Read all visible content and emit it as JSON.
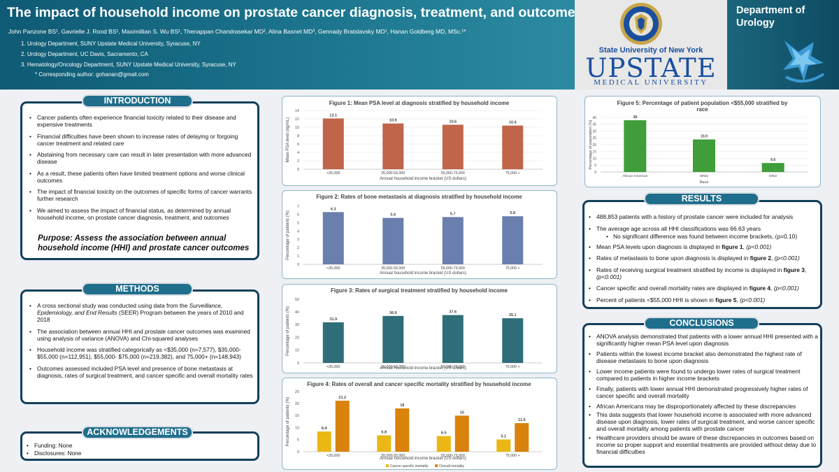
{
  "header": {
    "title": "The impact of household income on prostate cancer diagnosis, treatment, and outcomes",
    "authors": "John Panzone BS¹, Gavrielle J. Rood BS¹, Maximillian S. Wu BS¹, Thenappan Chandrasekar MD², Alina Basnet MD³, Gennady Bratslavsky MD¹, Hanan Goldberg MD, MSc.¹*",
    "affiliations": [
      "1. Urology Department, SUNY Upstate Medical University, Syracuse, NY",
      "2. Urology Department, UC Davis, Sacramento, CA",
      "3. Hematology/Oncology Department, SUNY Upstate Medical University, Syracuse, NY"
    ],
    "corresponding": "* Corresponding author: gohanan@gmail.com",
    "suny": "State University of New York",
    "upstate": "UPSTATE",
    "medical_university": "MEDICAL UNIVERSITY",
    "department": "Department of Urology"
  },
  "introduction": {
    "title": "INTRODUCTION",
    "bullets": [
      "Cancer patients often experience financial toxicity related to their disease and expensive treatments",
      "Financial difficulties have been shown to increase rates of delaying or forgoing cancer treatment and related care",
      "Abstaining from necessary care can result in later presentation with more advanced disease",
      "As a result, these patients often have limited treatment options and worse clinical outcomes",
      "The impact of financial toxicity on the outcomes of specific forms of cancer warrants further research",
      "We aimed to assess the impact of financial status, as determined by annual household income, on prostate cancer diagnosis, treatment, and outcomes"
    ],
    "purpose": "Purpose: Assess the association between annual household income (HHI) and prostate cancer outcomes"
  },
  "methods": {
    "title": "METHODS",
    "b1_pre": "A cross sectional study was conducted using data from the ",
    "b1_italic": "Surveillance, Epidemiology, and End Results",
    "b1_post": " (SEER) Program between the years of 2010 and 2018",
    "bullets": [
      "The association between annual HHI and prostate cancer outcomes was examined using analysis of variance (ANOVA) and Chi-squared analyses",
      "Household income was stratified categorically as <$35,000 (n=7,577), $35,000- $55,000 (n=112,951), $55,000- $75,000 (n=219,382), and 75,000+ (n=148,943)",
      "Outcomes assessed included PSA level and presence of bone metastasis at diagnosis, rates of surgical treatment, and cancer specific and overall mortality rates"
    ]
  },
  "acknowledgements": {
    "title": "ACKNOWLEDGEMENTS",
    "bullets": [
      "Funding: None",
      "Disclosures: None"
    ]
  },
  "results": {
    "title": "RESULTS",
    "b1": "488,853 patients with a history of prostate cancer were included for analysis",
    "b2": "The average age across all HHI classifications was 66.63 years",
    "b2_sub": "No significant difference was found between income brackets, (p=0.10)",
    "b3_pre": "Mean PSA levels upon diagnosis is displayed in ",
    "b3_fig": "figure 1",
    "b3_p": "(p<0.001)",
    "b4_pre": "Rates of metastasis to bone upon diagnosis is displayed in ",
    "b4_fig": "figure 2",
    "b4_p": "(p<0.001)",
    "b5_pre": "Rates of receiving surgical treatment stratified by income is displayed in ",
    "b5_fig": "figure 3",
    "b5_p": "(p<0.001)",
    "b6_pre": "Cancer specific and overall mortality rates are displayed in ",
    "b6_fig": "figure 4",
    "b6_p": "(p<0.001)",
    "b7_pre": " Percent of patients <$55,000 HHI is shown in ",
    "b7_fig": "figure 5",
    "b7_p": "(p<0.001)"
  },
  "conclusions": {
    "title": "CONCLUSIONS",
    "bullets": [
      "ANOVA analysis demonstrated that patients with a lower annual HHI presented with a significantly higher mean PSA level upon diagnosis",
      "Patients within the lowest income bracket also demonstrated the highest rate of disease metastasis to bone upon diagnosis",
      "Lower income patients were found to undergo lower rates of surgical treatment compared to patients in higher income brackets",
      "Finally, patients with lower annual HHI demonstrated progressively higher rates of cancer specific and overall mortality",
      "African Americans may be disproportionately affected by these discrepancies",
      "This data suggests that lower household income is associated with more advanced disease upon diagnosis, lower rates of surgical treatment, and worse cancer specific and overall mortality among patients with prostate cancer",
      "Healthcare providers should be aware of these discrepancies in outcomes based on income so proper support and essential treatments are provided without delay due to financial difficulties"
    ]
  },
  "chart_data": [
    {
      "id": "fig1",
      "type": "bar",
      "title": "Figure 1: Mean PSA level at diagnosis stratified by household income",
      "categories": [
        "<35,000",
        "35,000-55,000",
        "55,000-75,000",
        "75,000 +"
      ],
      "values": [
        12.1,
        10.9,
        10.6,
        10.4
      ],
      "labels": [
        "12.1",
        "10.9",
        "10.6",
        "10.4"
      ],
      "ticks": [
        "0",
        "2",
        "4",
        "6",
        "8",
        "10",
        "12",
        "14"
      ],
      "ylim": [
        0,
        14
      ],
      "xlabel": "Annual household income bracket (US dollars)",
      "ylabel": "Mean PSA level (ng/mL)",
      "color": "#c0654a"
    },
    {
      "id": "fig2",
      "type": "bar",
      "title": "Figure 2: Rates of bone metastasis at diagnosis stratified by household income",
      "categories": [
        "<35,000",
        "35,000-55,000",
        "55,000-75,000",
        "75,000 +"
      ],
      "values": [
        6.3,
        5.6,
        5.7,
        5.8
      ],
      "labels": [
        "6.3",
        "5.6",
        "5.7",
        "5.8"
      ],
      "ticks": [
        "0",
        "1",
        "2",
        "3",
        "4",
        "5",
        "6",
        "7"
      ],
      "ylim": [
        0,
        7
      ],
      "xlabel": "Annual household income bracket (US dollars)",
      "ylabel": "Percentage of patients (%)",
      "color": "#6a7fad"
    },
    {
      "id": "fig3",
      "type": "bar",
      "title": "Figure 3: Rates of surgical treatment stratified by household income",
      "categories": [
        "<35,000",
        "35,000-55,000",
        "55,000-75,000",
        "75,000 +"
      ],
      "values": [
        31.9,
        36.9,
        37.6,
        35.1
      ],
      "labels": [
        "31.9",
        "36.9",
        "37.6",
        "35.1"
      ],
      "ticks": [
        "0",
        "10",
        "20",
        "30",
        "40",
        "50"
      ],
      "ylim": [
        0,
        50
      ],
      "xlabel": "Annual household income bracket (US dollars)",
      "ylabel": "Percentage of patients (%)",
      "color": "#2f6e79"
    },
    {
      "id": "fig4",
      "type": "bar",
      "title": "Figure 4: Rates of overall and cancer specific mortality stratified by household income",
      "categories": [
        "<35,000",
        "35,000-55,000",
        "55,000-75,000",
        "75,000 +"
      ],
      "series": [
        {
          "name": "Cancer specific mortality",
          "values": [
            8.4,
            6.8,
            6.5,
            5.1
          ],
          "labels": [
            "8.4",
            "6.8",
            "6.5",
            "5.1"
          ],
          "color": "#eab714"
        },
        {
          "name": "Overall mortality",
          "values": [
            21.2,
            18,
            15,
            11.9
          ],
          "labels": [
            "21.2",
            "18",
            "15",
            "11.9"
          ],
          "color": "#d9820c"
        }
      ],
      "ticks": [
        "0",
        "5",
        "10",
        "15",
        "20",
        "25"
      ],
      "ylim": [
        0,
        25
      ],
      "xlabel": "Annual household income bracket (US dollars)",
      "ylabel": "Percentage of patients (%)",
      "legend": "bottom"
    },
    {
      "id": "fig5",
      "type": "bar",
      "title": "Figure 5: Percentage of patient population <$55,000 stratified by race",
      "categories": [
        "African American",
        "White",
        "Other"
      ],
      "values": [
        38,
        23.9,
        6.6
      ],
      "labels": [
        "38",
        "23.9",
        "6.6"
      ],
      "ticks": [
        "0",
        "5",
        "10",
        "15",
        "20",
        "25",
        "30",
        "35",
        "40"
      ],
      "ylim": [
        0,
        40
      ],
      "xlabel": "Race",
      "ylabel": "Percentage of population (%)",
      "color": "#3f9e3a"
    }
  ]
}
